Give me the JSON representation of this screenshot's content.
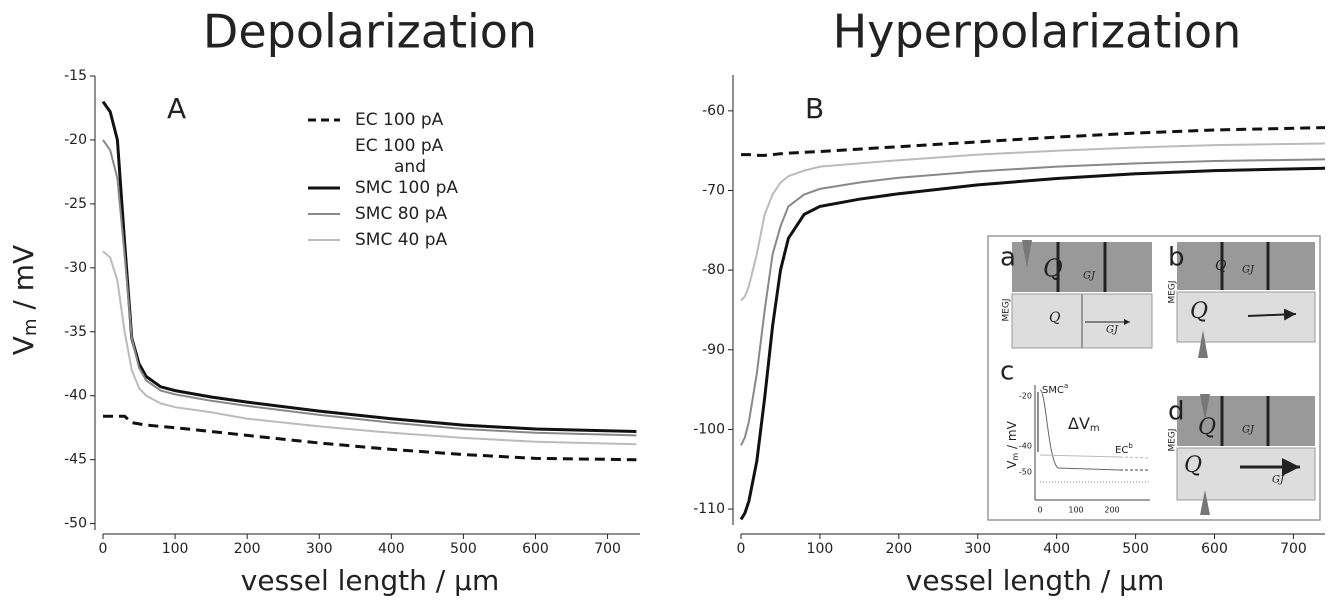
{
  "chart_data": [
    {
      "type": "line",
      "title": "Depolarization",
      "panel": "A",
      "xlabel": "vessel length / μm",
      "ylabel": "V",
      "ylabel_sub": "m",
      "ylabel_unit": " / mV",
      "x": [
        0,
        10,
        20,
        30,
        40,
        50,
        60,
        80,
        100,
        150,
        200,
        300,
        400,
        500,
        600,
        740
      ],
      "xlim": [
        0,
        745
      ],
      "xticks": [
        0,
        100,
        200,
        300,
        400,
        500,
        600,
        700
      ],
      "ylim": [
        -50.5,
        -15
      ],
      "yticks": [
        -15,
        -20,
        -25,
        -30,
        -35,
        -40,
        -45,
        -50
      ],
      "legend": true,
      "legend_note": [
        "EC 100 pA",
        "and"
      ],
      "series": [
        {
          "name": "EC 100 pA",
          "color": "#111111",
          "dashed": true,
          "values": [
            -41.6,
            -41.6,
            -41.6,
            -41.6,
            -42.1,
            -42.2,
            -42.3,
            -42.4,
            -42.5,
            -42.8,
            -43.1,
            -43.7,
            -44.2,
            -44.6,
            -44.9,
            -45
          ]
        },
        {
          "name": "SMC 100 pA",
          "color": "#111111",
          "values": [
            -17,
            -17.8,
            -20,
            -28,
            -35.5,
            -37.5,
            -38.5,
            -39.3,
            -39.6,
            -40.1,
            -40.5,
            -41.2,
            -41.8,
            -42.3,
            -42.6,
            -42.8
          ]
        },
        {
          "name": "SMC 80 pA",
          "color": "#888888",
          "values": [
            -20,
            -20.8,
            -23,
            -29,
            -35.5,
            -37.8,
            -38.8,
            -39.6,
            -39.9,
            -40.4,
            -40.8,
            -41.5,
            -42.1,
            -42.6,
            -42.9,
            -43.1
          ]
        },
        {
          "name": "SMC 40 pA",
          "color": "#bbbbbb",
          "values": [
            -28.7,
            -29.2,
            -31,
            -35,
            -38,
            -39.4,
            -40,
            -40.6,
            -40.9,
            -41.3,
            -41.8,
            -42.4,
            -42.9,
            -43.3,
            -43.6,
            -43.8
          ]
        }
      ]
    },
    {
      "type": "line",
      "title": "Hyperpolarization",
      "panel": "B",
      "xlabel": "vessel length / μm",
      "x": [
        0,
        5,
        10,
        20,
        30,
        40,
        50,
        60,
        80,
        100,
        150,
        200,
        300,
        400,
        500,
        600,
        740
      ],
      "xlim": [
        0,
        740
      ],
      "xticks": [
        0,
        100,
        200,
        300,
        400,
        500,
        600,
        700
      ],
      "ylim": [
        -112,
        -55.5
      ],
      "yticks": [
        -60,
        -70,
        -80,
        -90,
        -100,
        -110
      ],
      "series": [
        {
          "color": "#111111",
          "dashed": true,
          "values": [
            -65.5,
            -65.5,
            -65.5,
            -65.6,
            -65.6,
            -65.5,
            -65.4,
            -65.3,
            -65.2,
            -65.1,
            -64.8,
            -64.5,
            -63.9,
            -63.3,
            -62.8,
            -62.4,
            -62.1
          ]
        },
        {
          "color": "#111111",
          "values": [
            -111.3,
            -110.5,
            -109,
            -104,
            -96,
            -87,
            -80,
            -76,
            -73,
            -72,
            -71.1,
            -70.4,
            -69.3,
            -68.5,
            -67.9,
            -67.5,
            -67.2
          ]
        },
        {
          "color": "#888888",
          "values": [
            -102,
            -101,
            -99,
            -93,
            -85,
            -78,
            -74.5,
            -72,
            -70.5,
            -69.8,
            -69,
            -68.4,
            -67.6,
            -67,
            -66.6,
            -66.3,
            -66.1
          ]
        },
        {
          "color": "#bbbbbb",
          "values": [
            -83.8,
            -83.3,
            -82,
            -78,
            -73,
            -70.5,
            -69,
            -68.2,
            -67.5,
            -67,
            -66.6,
            -66.2,
            -65.5,
            -65,
            -64.6,
            -64.3,
            -64.1
          ]
        }
      ]
    }
  ],
  "inset": {
    "panel_labels": [
      "a",
      "b",
      "c",
      "d"
    ],
    "q": "Q",
    "gj": "GJ",
    "megj": "MEGJ",
    "c_ylabel": "V",
    "c_ylabel_sub": "m",
    "c_ylabel_unit": " / mV",
    "c_yticks": [
      "-20",
      "-40",
      "-50"
    ],
    "c_xticks": [
      "0",
      "100",
      "200"
    ],
    "smc": "SMC",
    "smc_sup": "a",
    "ec": "EC",
    "ec_sup": "b",
    "delta": "ΔV",
    "delta_sub": "m"
  }
}
